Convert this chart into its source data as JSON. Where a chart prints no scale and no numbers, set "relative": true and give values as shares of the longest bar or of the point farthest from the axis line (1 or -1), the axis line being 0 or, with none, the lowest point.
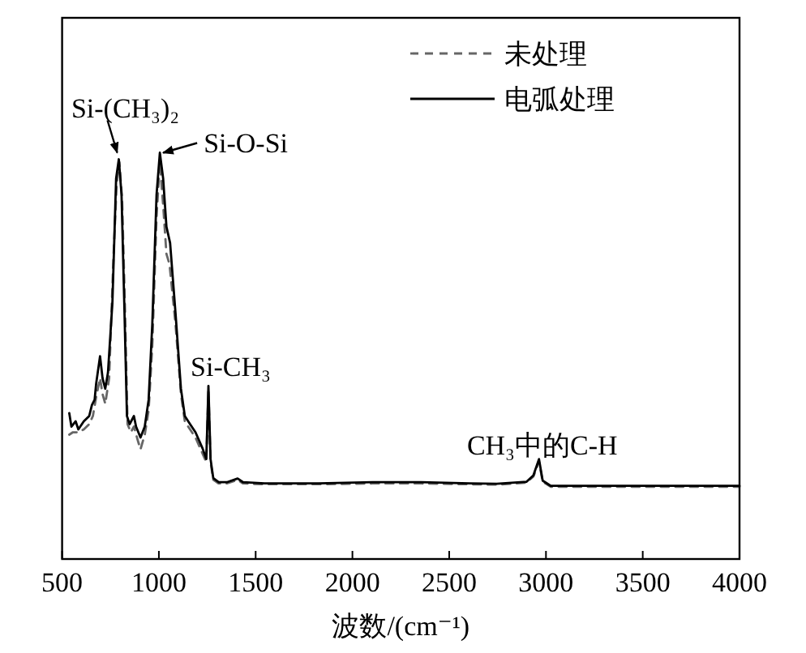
{
  "chart_data": {
    "type": "line",
    "relative": true,
    "xlabel": "波数/(cm⁻¹)",
    "xlim": [
      500,
      4000
    ],
    "xticks": [
      500,
      1000,
      1500,
      2000,
      2500,
      3000,
      3500,
      4000
    ],
    "grid": false,
    "legend": "top right",
    "marker": "none",
    "series": [
      {
        "name": "未处理",
        "color": "#666666",
        "line_style": "dashed",
        "x": [
          537,
          556,
          584,
          612,
          640,
          659,
          676,
          696,
          709,
          723,
          743,
          765,
          782,
          796,
          810,
          824,
          838,
          855,
          871,
          891,
          905,
          927,
          947,
          966,
          988,
          1005,
          1022,
          1039,
          1055,
          1086,
          1114,
          1134,
          1161,
          1189,
          1226,
          1245,
          1256,
          1267,
          1281,
          1309,
          1351,
          1407,
          1435,
          1546,
          1825,
          2104,
          2355,
          2606,
          2746,
          2899,
          2935,
          2964,
          2983,
          3025,
          3304,
          3583,
          4000
        ],
        "values": [
          0.306,
          0.312,
          0.312,
          0.319,
          0.332,
          0.352,
          0.399,
          0.445,
          0.406,
          0.382,
          0.445,
          0.738,
          0.924,
          0.977,
          0.884,
          0.632,
          0.332,
          0.312,
          0.326,
          0.292,
          0.27,
          0.306,
          0.366,
          0.525,
          0.844,
          0.977,
          0.871,
          0.751,
          0.725,
          0.578,
          0.406,
          0.339,
          0.319,
          0.299,
          0.259,
          0.239,
          0.419,
          0.239,
          0.195,
          0.186,
          0.186,
          0.195,
          0.186,
          0.184,
          0.184,
          0.186,
          0.186,
          0.184,
          0.183,
          0.188,
          0.203,
          0.24,
          0.19,
          0.178,
          0.178,
          0.178,
          0.178
        ]
      },
      {
        "name": "电弧处理",
        "color": "#000000",
        "line_style": "solid",
        "x": [
          537,
          548,
          570,
          584,
          612,
          640,
          654,
          668,
          676,
          696,
          709,
          723,
          737,
          760,
          779,
          793,
          807,
          821,
          835,
          849,
          871,
          882,
          905,
          927,
          947,
          966,
          988,
          1005,
          1022,
          1039,
          1058,
          1086,
          1114,
          1134,
          1161,
          1189,
          1226,
          1245,
          1256,
          1267,
          1281,
          1309,
          1351,
          1407,
          1435,
          1546,
          1825,
          2104,
          2355,
          2606,
          2746,
          2899,
          2935,
          2964,
          2983,
          3025,
          3304,
          3583,
          4000
        ],
        "values": [
          0.359,
          0.326,
          0.339,
          0.319,
          0.339,
          0.352,
          0.379,
          0.392,
          0.432,
          0.499,
          0.445,
          0.419,
          0.459,
          0.632,
          0.937,
          0.984,
          0.897,
          0.632,
          0.352,
          0.332,
          0.352,
          0.326,
          0.299,
          0.326,
          0.392,
          0.578,
          0.897,
          1.0,
          0.937,
          0.818,
          0.778,
          0.605,
          0.419,
          0.352,
          0.332,
          0.312,
          0.272,
          0.246,
          0.426,
          0.246,
          0.199,
          0.189,
          0.189,
          0.198,
          0.189,
          0.186,
          0.186,
          0.189,
          0.189,
          0.186,
          0.185,
          0.19,
          0.206,
          0.246,
          0.193,
          0.18,
          0.18,
          0.18,
          0.18
        ]
      }
    ],
    "annotations": [
      {
        "text": "Si-(CH₃)₂",
        "x": 793,
        "y": 0.984
      },
      {
        "text": "Si-O-Si",
        "x": 1005,
        "y": 1.0
      },
      {
        "text": "Si-CH₃",
        "x": 1256,
        "y": 0.426
      },
      {
        "text": "CH₃中的C-H",
        "x": 2964,
        "y": 0.246
      }
    ]
  }
}
